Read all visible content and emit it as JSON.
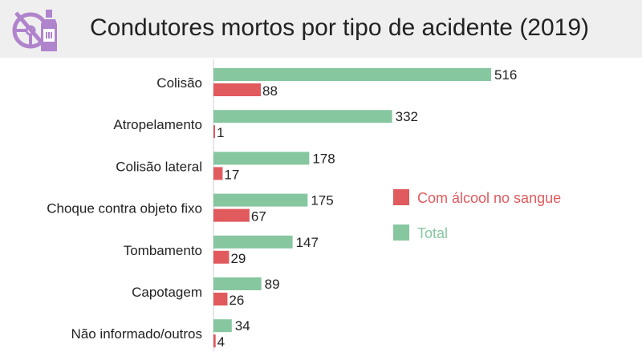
{
  "header": {
    "title": "Condutores mortos por tipo de acidente (2019)",
    "logo_icon": "steering-wheel-bottle-icon"
  },
  "colors": {
    "total": "#86c7a0",
    "alcohol": "#e05a5e",
    "axis": "#cccccc",
    "header_bg": "#efefef",
    "logo": "#b084cc"
  },
  "chart_data": {
    "type": "bar",
    "orientation": "horizontal",
    "title": "Condutores mortos por tipo de acidente (2019)",
    "categories": [
      "Colisão",
      "Atropelamento",
      "Colisão lateral",
      "Choque contra objeto fixo",
      "Tombamento",
      "Capotagem",
      "Não informado/outros"
    ],
    "series": [
      {
        "name": "Total",
        "values": [
          516,
          332,
          178,
          175,
          147,
          89,
          34
        ]
      },
      {
        "name": "Com álcool no sangue",
        "values": [
          88,
          1,
          17,
          67,
          29,
          26,
          4
        ]
      }
    ],
    "legend": {
      "position": "right",
      "items": [
        "Com álcool no sangue",
        "Total"
      ]
    },
    "grid": false
  }
}
